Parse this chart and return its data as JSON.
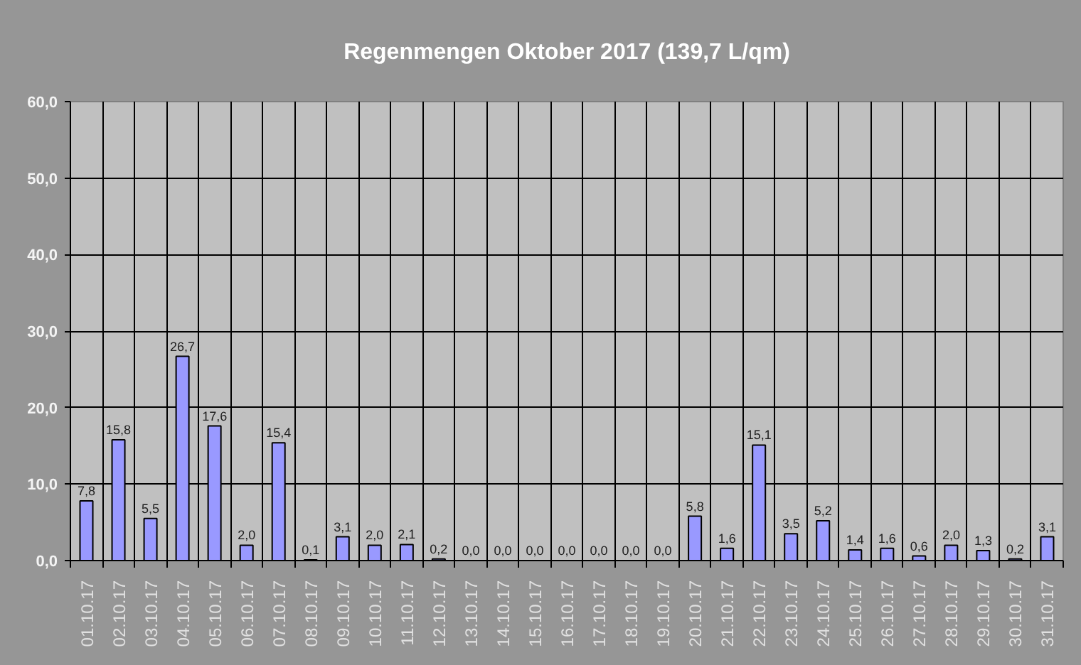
{
  "chart_data": {
    "type": "bar",
    "title": "Regenmengen Oktober 2017 (139,7 L/qm)",
    "categories": [
      "01.10.17",
      "02.10.17",
      "03.10.17",
      "04.10.17",
      "05.10.17",
      "06.10.17",
      "07.10.17",
      "08.10.17",
      "09.10.17",
      "10.10.17",
      "11.10.17",
      "12.10.17",
      "13.10.17",
      "14.10.17",
      "15.10.17",
      "16.10.17",
      "17.10.17",
      "18.10.17",
      "19.10.17",
      "20.10.17",
      "21.10.17",
      "22.10.17",
      "23.10.17",
      "24.10.17",
      "25.10.17",
      "26.10.17",
      "27.10.17",
      "28.10.17",
      "29.10.17",
      "30.10.17",
      "31.10.17"
    ],
    "values": [
      7.8,
      15.8,
      5.5,
      26.7,
      17.6,
      2.0,
      15.4,
      0.1,
      3.1,
      2.0,
      2.1,
      0.2,
      0.0,
      0.0,
      0.0,
      0.0,
      0.0,
      0.0,
      0.0,
      5.8,
      1.6,
      15.1,
      3.5,
      5.2,
      1.4,
      1.6,
      0.6,
      2.0,
      1.3,
      0.2,
      3.1
    ],
    "value_labels": [
      "7,8",
      "15,8",
      "5,5",
      "26,7",
      "17,6",
      "2,0",
      "15,4",
      "0,1",
      "3,1",
      "2,0",
      "2,1",
      "0,2",
      "0,0",
      "0,0",
      "0,0",
      "0,0",
      "0,0",
      "0,0",
      "0,0",
      "5,8",
      "1,6",
      "15,1",
      "3,5",
      "5,2",
      "1,4",
      "1,6",
      "0,6",
      "2,0",
      "1,3",
      "0,2",
      "3,1"
    ],
    "color": "#9999ff",
    "ylim": [
      0,
      60
    ],
    "yticks": [
      {
        "value": 0,
        "label": "0,0"
      },
      {
        "value": 10,
        "label": "10,0"
      },
      {
        "value": 20,
        "label": "20,0"
      },
      {
        "value": 30,
        "label": "30,0"
      },
      {
        "value": 40,
        "label": "40,0"
      },
      {
        "value": 50,
        "label": "50,0"
      },
      {
        "value": 60,
        "label": "60,0"
      }
    ],
    "grid": true
  }
}
